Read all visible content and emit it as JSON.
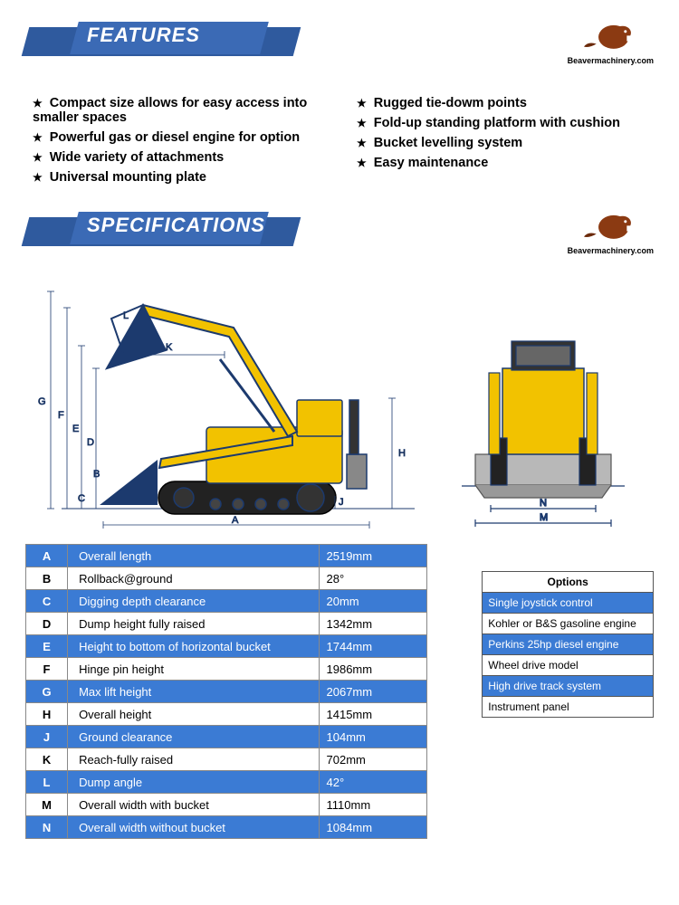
{
  "logo_text": "Beavermachinery.com",
  "headings": {
    "features": "FEATURES",
    "specs": "SPECIFICATIONS"
  },
  "features": {
    "left": [
      "Compact size allows for easy access into smaller spaces",
      "Powerful gas or diesel engine for option",
      "Wide variety of attachments",
      "Universal mounting plate"
    ],
    "right": [
      "Rugged tie-dowm points",
      "Fold-up standing platform with cushion",
      "Bucket levelling system",
      "Easy maintenance"
    ]
  },
  "spec_rows": [
    {
      "code": "A",
      "label": "Overall length",
      "value": "2519mm",
      "blue": true
    },
    {
      "code": "B",
      "label": "Rollback@ground",
      "value": "28°",
      "blue": false
    },
    {
      "code": "C",
      "label": "Digging depth clearance",
      "value": "20mm",
      "blue": true
    },
    {
      "code": "D",
      "label": "Dump height fully raised",
      "value": "1342mm",
      "blue": false
    },
    {
      "code": "E",
      "label": "Height to bottom of horizontal bucket",
      "value": "1744mm",
      "blue": true
    },
    {
      "code": "F",
      "label": "Hinge pin height",
      "value": "1986mm",
      "blue": false
    },
    {
      "code": "G",
      "label": "Max lift height",
      "value": "2067mm",
      "blue": true
    },
    {
      "code": "H",
      "label": "Overall height",
      "value": "1415mm",
      "blue": false
    },
    {
      "code": "J",
      "label": "Ground clearance",
      "value": "104mm",
      "blue": true
    },
    {
      "code": "K",
      "label": "Reach-fully raised",
      "value": "702mm",
      "blue": false
    },
    {
      "code": "L",
      "label": "Dump angle",
      "value": "42°",
      "blue": true
    },
    {
      "code": "M",
      "label": "Overall width with bucket",
      "value": "1110mm",
      "blue": false
    },
    {
      "code": "N",
      "label": "Overall width without bucket",
      "value": "1084mm",
      "blue": true
    }
  ],
  "options_title": "Options",
  "options": [
    {
      "text": "Single joystick control",
      "blue": true
    },
    {
      "text": "Kohler or B&S gasoline engine",
      "blue": false
    },
    {
      "text": "Perkins 25hp diesel engine",
      "blue": true
    },
    {
      "text": "Wheel drive model",
      "blue": false
    },
    {
      "text": "High drive track system",
      "blue": true
    },
    {
      "text": "Instrument panel",
      "blue": false
    }
  ],
  "diagram": {
    "machine_color": "#f2c200",
    "machine_outline": "#1c3a6e",
    "dim_color": "#1c3a6e",
    "side": {
      "labels": [
        "A",
        "B",
        "C",
        "D",
        "E",
        "F",
        "G",
        "H",
        "J",
        "K",
        "L"
      ]
    },
    "front": {
      "labels": [
        "N",
        "M"
      ]
    }
  }
}
